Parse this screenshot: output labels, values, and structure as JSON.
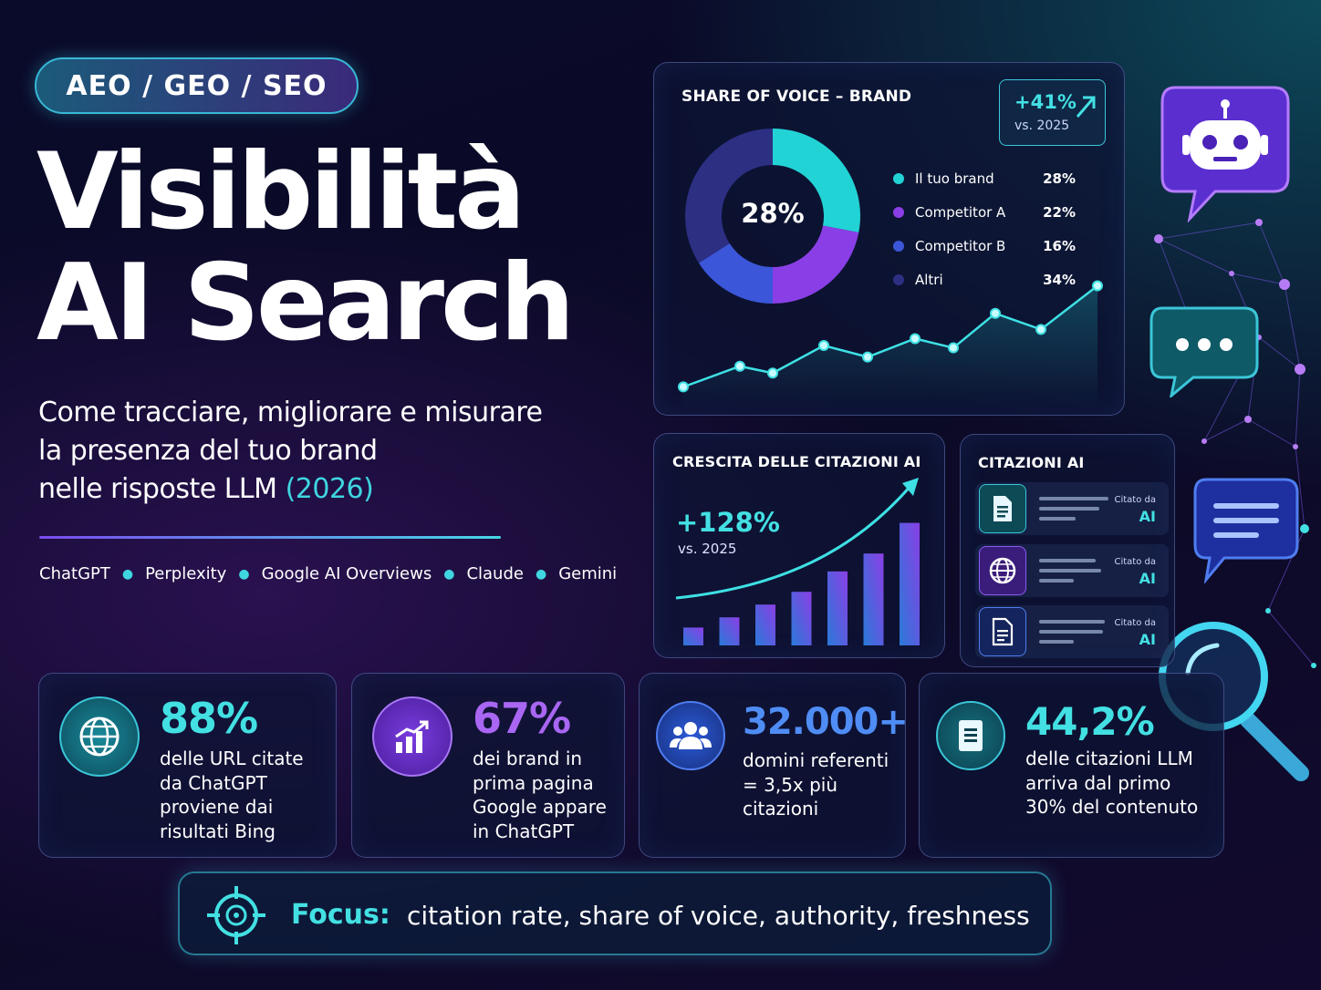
{
  "header": {
    "tag": "AEO / GEO / SEO",
    "title_line1": "Visibilità",
    "title_line2": "AI Search",
    "subtitle_line1": "Come tracciare, migliorare e misurare",
    "subtitle_line2": "la presenza del tuo brand",
    "subtitle_line3": "nelle risposte LLM",
    "subtitle_year": "(2026)",
    "platforms": [
      "ChatGPT",
      "Perplexity",
      "Google AI Overviews",
      "Claude",
      "Gemini"
    ]
  },
  "share_of_voice": {
    "title": "SHARE OF VOICE – BRAND",
    "center_value": "28%",
    "badge_value": "+41%",
    "badge_label": "vs. 2025"
  },
  "citation_growth": {
    "title": "CRESCITA DELLE CITAZIONI AI",
    "value": "+128%",
    "label": "vs. 2025"
  },
  "ai_citations": {
    "title": "CITAZIONI AI",
    "items": [
      {
        "icon": "document-icon",
        "cited_by": "Citato da",
        "source": "AI"
      },
      {
        "icon": "globe-icon",
        "cited_by": "Citato da",
        "source": "AI"
      },
      {
        "icon": "document-icon",
        "cited_by": "Citato da",
        "source": "AI"
      }
    ]
  },
  "stats": [
    {
      "value": "88%",
      "icon": "globe-icon",
      "color": "#43e0e3",
      "lines": [
        "delle URL citate",
        "da ChatGPT",
        "proviene dai",
        "risultati Bing"
      ]
    },
    {
      "value": "67%",
      "icon": "chart-icon",
      "color": "#a866f2",
      "lines": [
        "dei brand in",
        "prima pagina",
        "Google appare",
        "in ChatGPT"
      ]
    },
    {
      "value": "32.000+",
      "icon": "users-icon",
      "color": "#4f8df5",
      "lines": [
        "domini referenti",
        "= 3,5x più",
        "citazioni"
      ]
    },
    {
      "value": "44,2%",
      "icon": "document-icon",
      "color": "#43e0e3",
      "lines": [
        "delle citazioni LLM",
        "arriva dal primo",
        "30% del contenuto"
      ]
    }
  ],
  "focus": {
    "label": "Focus:",
    "text": "citation rate, share of voice, authority, freshness"
  },
  "chart_data": [
    {
      "type": "pie",
      "title": "SHARE OF VOICE – BRAND",
      "categories": [
        "Il tuo brand",
        "Competitor A",
        "Competitor B",
        "Altri"
      ],
      "values": [
        28,
        22,
        16,
        34
      ],
      "labels": [
        "28%",
        "22%",
        "16%",
        "34%"
      ],
      "colors": [
        "#22d3d6",
        "#8a3fe6",
        "#3b56d8",
        "#2c2f82"
      ]
    },
    {
      "type": "line",
      "y": [
        10,
        28,
        22,
        46,
        36,
        52,
        44,
        74,
        60,
        98
      ]
    },
    {
      "type": "bar",
      "title": "CRESCITA DELLE CITAZIONI AI",
      "values": [
        14,
        22,
        32,
        42,
        58,
        72,
        96
      ]
    }
  ]
}
